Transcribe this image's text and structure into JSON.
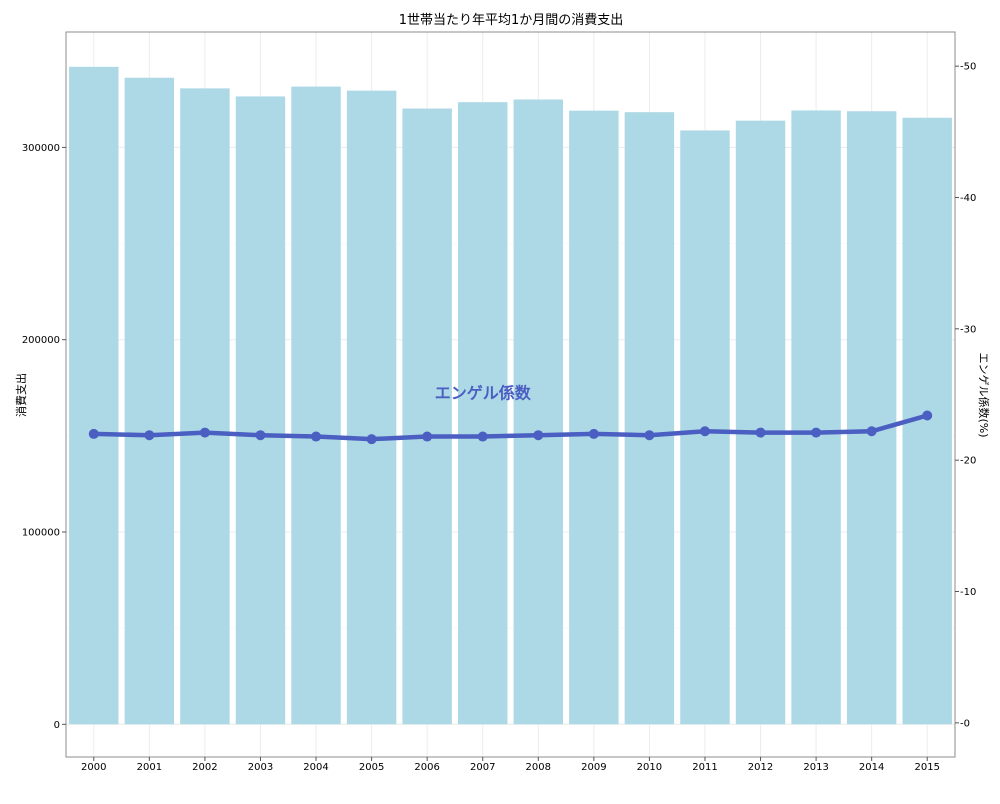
{
  "chart_data": {
    "type": "bar",
    "title": "1世帯当たり年平均1か月間の消費支出",
    "xlabel": "",
    "ylabel": "消費支出",
    "y2label": "エンゲル係数(%)",
    "categories": [
      "2000",
      "2001",
      "2002",
      "2003",
      "2004",
      "2005",
      "2006",
      "2007",
      "2008",
      "2009",
      "2010",
      "2011",
      "2012",
      "2013",
      "2014",
      "2015"
    ],
    "series": [
      {
        "axis": "left",
        "kind": "bar",
        "color": "#add8e6",
        "values": [
          341900,
          336200,
          330700,
          326500,
          331600,
          329500,
          320200,
          323500,
          324900,
          319100,
          318300,
          308800,
          313900,
          319200,
          318800,
          315400
        ]
      },
      {
        "axis": "right",
        "kind": "line",
        "color": "#4a5fc1",
        "values": [
          22.0,
          21.9,
          22.1,
          21.9,
          21.8,
          21.6,
          21.8,
          21.8,
          21.9,
          22.0,
          21.9,
          22.2,
          22.1,
          22.1,
          22.2,
          23.4
        ]
      }
    ],
    "ylim": [
      -17000,
      360000
    ],
    "y_ticks": [
      0,
      100000,
      200000,
      300000
    ],
    "y_tick_labels": [
      "0",
      "100000",
      "200000",
      "300000"
    ],
    "y2lim": [
      -2.6,
      52.6
    ],
    "y2_ticks": [
      0,
      10,
      20,
      30,
      40,
      50
    ],
    "y2_tick_labels": [
      "0",
      "10",
      "20",
      "30",
      "40",
      "50"
    ],
    "annotations": [
      {
        "text": "エンゲル係数",
        "x": "2007",
        "y2": 24.7
      }
    ],
    "grid": true,
    "legend": "none"
  }
}
